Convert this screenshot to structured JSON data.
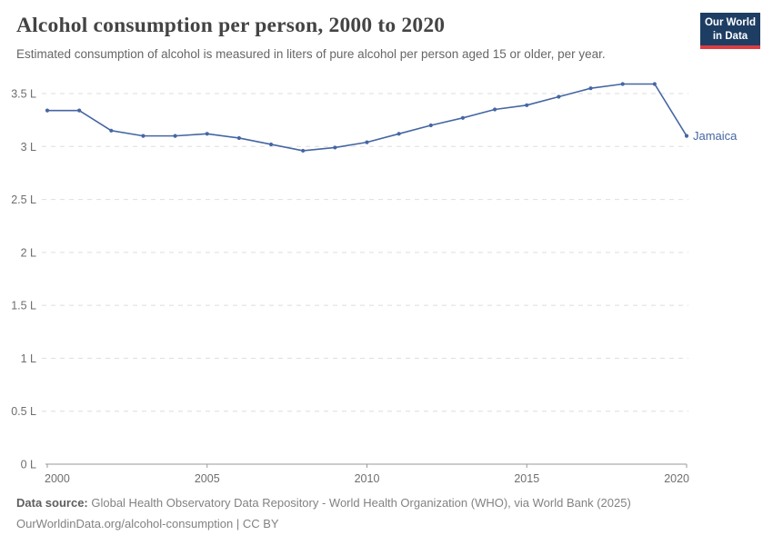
{
  "header": {
    "title": "Alcohol consumption per person, 2000 to 2020",
    "subtitle": "Estimated consumption of alcohol is measured in liters of pure alcohol per person aged 15 or older, per year.",
    "logo": {
      "line1": "Our World",
      "line2": "in Data",
      "bg_color": "#1d3d63",
      "accent_color": "#dc3d43"
    }
  },
  "chart_data": {
    "type": "line",
    "title": "Alcohol consumption per person, 2000 to 2020",
    "xlabel": "",
    "ylabel": "",
    "x": [
      2000,
      2001,
      2002,
      2003,
      2004,
      2005,
      2006,
      2007,
      2008,
      2009,
      2010,
      2011,
      2012,
      2013,
      2014,
      2015,
      2016,
      2017,
      2018,
      2019,
      2020
    ],
    "series": [
      {
        "name": "Jamaica",
        "color": "#4566a3",
        "values": [
          3.34,
          3.34,
          3.15,
          3.1,
          3.1,
          3.12,
          3.08,
          3.02,
          2.96,
          2.99,
          3.04,
          3.12,
          3.2,
          3.27,
          3.35,
          3.39,
          3.47,
          3.55,
          3.59,
          3.59,
          3.1
        ]
      }
    ],
    "xlim": [
      2000,
      2020
    ],
    "ylim": [
      0,
      3.5
    ],
    "xticks": [
      2000,
      2005,
      2010,
      2015,
      2020
    ],
    "xtick_labels": [
      "2000",
      "2005",
      "2010",
      "2015",
      "2020"
    ],
    "yticks": [
      0,
      0.5,
      1,
      1.5,
      2,
      2.5,
      3,
      3.5
    ],
    "ytick_labels": [
      "0 L",
      "0.5 L",
      "1 L",
      "1.5 L",
      "2 L",
      "2.5 L",
      "3 L",
      "3.5 L"
    ],
    "grid": "horizontal-dashed",
    "legend_position": "end-of-line-label",
    "colors": {
      "grid_color": "#dedede",
      "axis_color": "#9a9a9a",
      "tick_label_color": "#6e6e6e"
    }
  },
  "footer": {
    "source_label": "Data source:",
    "source_text": " Global Health Observatory Data Repository - World Health Organization (WHO), via World Bank (2025)",
    "link_text": "OurWorldinData.org/alcohol-consumption",
    "separator": " | ",
    "license": "CC BY"
  }
}
